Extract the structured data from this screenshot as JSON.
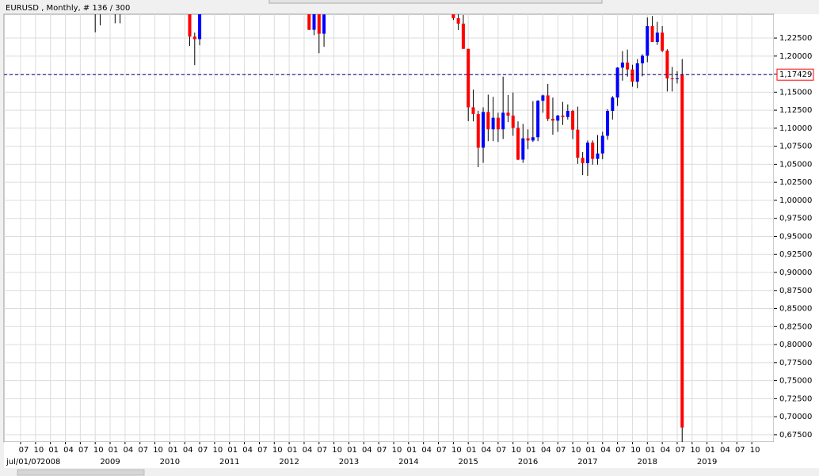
{
  "chart_data": {
    "type": "candlestick",
    "title": "EURUSD , Monthly, # 136 / 300",
    "colors": {
      "up": "#0000ff",
      "down": "#ff0000",
      "wick": "#000000"
    },
    "grid": true,
    "x": [
      "2008-10",
      "2008-11",
      "2008-12",
      "2009-01",
      "2009-02",
      "2009-03",
      "2010-05",
      "2010-06",
      "2010-07",
      "2012-05",
      "2012-06",
      "2012-07",
      "2012-08",
      "2014-10",
      "2014-11",
      "2014-12",
      "2015-01",
      "2015-02",
      "2015-03",
      "2015-04",
      "2015-05",
      "2015-06",
      "2015-07",
      "2015-08",
      "2015-09",
      "2015-10",
      "2015-11",
      "2015-12",
      "2016-01",
      "2016-02",
      "2016-03",
      "2016-04",
      "2016-05",
      "2016-06",
      "2016-07",
      "2016-08",
      "2016-09",
      "2016-10",
      "2016-11",
      "2016-12",
      "2017-01",
      "2017-02",
      "2017-03",
      "2017-04",
      "2017-05",
      "2017-06",
      "2017-07",
      "2017-08",
      "2017-09",
      "2017-10",
      "2017-11",
      "2017-12",
      "2018-01",
      "2018-02",
      "2018-03",
      "2018-04",
      "2018-05",
      "2018-06",
      "2018-07",
      "2018-08"
    ],
    "open": [
      1.409,
      1.273,
      1.2695,
      1.397,
      1.28,
      1.267,
      1.295,
      1.227,
      1.2235,
      1.324,
      1.2365,
      1.2665,
      1.231,
      1.263,
      1.2525,
      1.245,
      1.21,
      1.129,
      1.1197,
      1.073,
      1.1225,
      1.0985,
      1.1145,
      1.0985,
      1.1215,
      1.1175,
      1.1005,
      1.0565,
      1.086,
      1.083,
      1.0875,
      1.138,
      1.1455,
      1.113,
      1.1105,
      1.1175,
      1.1155,
      1.124,
      1.098,
      1.059,
      1.0515,
      1.08,
      1.0575,
      1.065,
      1.0895,
      1.124,
      1.1425,
      1.184,
      1.191,
      1.1815,
      1.1645,
      1.19,
      1.2005,
      1.2415,
      1.2195,
      1.2325,
      1.2075,
      1.169,
      1.1685,
      1.1742
    ],
    "high": [
      1.41,
      1.33,
      1.472,
      1.4,
      1.306,
      1.374,
      1.322,
      1.2325,
      1.311,
      1.3285,
      1.2745,
      1.2745,
      1.2625,
      1.289,
      1.26,
      1.257,
      1.21,
      1.1535,
      1.124,
      1.129,
      1.1465,
      1.1435,
      1.1215,
      1.1715,
      1.146,
      1.1495,
      1.1095,
      1.106,
      1.0985,
      1.1375,
      1.139,
      1.1465,
      1.1615,
      1.1425,
      1.1185,
      1.1365,
      1.133,
      1.1255,
      1.13,
      1.067,
      1.083,
      1.083,
      1.0905,
      1.095,
      1.1265,
      1.1445,
      1.1845,
      1.207,
      1.209,
      1.188,
      1.196,
      1.2025,
      1.2535,
      1.2555,
      1.2475,
      1.2415,
      1.2095,
      1.185,
      1.179,
      1.196
    ],
    "low": [
      1.233,
      1.2425,
      1.264,
      1.2745,
      1.2455,
      1.2455,
      1.214,
      1.1875,
      1.215,
      1.236,
      1.229,
      1.204,
      1.213,
      1.25,
      1.236,
      1.21,
      1.1098,
      1.1095,
      1.046,
      1.052,
      1.082,
      1.082,
      1.081,
      1.085,
      1.1085,
      1.0895,
      1.056,
      1.052,
      1.071,
      1.081,
      1.082,
      1.1215,
      1.11,
      1.091,
      1.095,
      1.1045,
      1.112,
      1.085,
      1.0505,
      1.035,
      1.034,
      1.0495,
      1.0495,
      1.057,
      1.084,
      1.112,
      1.131,
      1.166,
      1.1715,
      1.1575,
      1.1555,
      1.172,
      1.1915,
      1.2205,
      1.2155,
      1.2055,
      1.151,
      1.151,
      1.162,
      0.66
    ],
    "close": [
      1.273,
      1.2695,
      1.397,
      1.28,
      1.267,
      1.325,
      1.227,
      1.2235,
      1.305,
      1.2365,
      1.2665,
      1.231,
      1.2575,
      1.2525,
      1.245,
      1.21,
      1.129,
      1.1197,
      1.073,
      1.1225,
      1.0985,
      1.1145,
      1.0985,
      1.1215,
      1.1175,
      1.1005,
      1.0565,
      1.086,
      1.083,
      1.0875,
      1.138,
      1.1455,
      1.113,
      1.1105,
      1.1175,
      1.1155,
      1.124,
      1.098,
      1.059,
      1.0515,
      1.08,
      1.0575,
      1.065,
      1.0895,
      1.124,
      1.1425,
      1.184,
      1.191,
      1.1815,
      1.1645,
      1.19,
      1.2005,
      1.2415,
      1.2195,
      1.2325,
      1.2075,
      1.169,
      1.1685,
      1.169,
      0.685
    ],
    "ylim": [
      0.665,
      1.258
    ],
    "yticks": [
      {
        "value": 0.675,
        "label": "0,67500"
      },
      {
        "value": 0.7,
        "label": "0,70000"
      },
      {
        "value": 0.725,
        "label": "0,72500"
      },
      {
        "value": 0.75,
        "label": "0,75000"
      },
      {
        "value": 0.775,
        "label": "0,77500"
      },
      {
        "value": 0.8,
        "label": "0,80000"
      },
      {
        "value": 0.825,
        "label": "0,82500"
      },
      {
        "value": 0.85,
        "label": "0,85000"
      },
      {
        "value": 0.875,
        "label": "0,87500"
      },
      {
        "value": 0.9,
        "label": "0,90000"
      },
      {
        "value": 0.925,
        "label": "0,92500"
      },
      {
        "value": 0.95,
        "label": "0,95000"
      },
      {
        "value": 0.975,
        "label": "0,97500"
      },
      {
        "value": 1.0,
        "label": "1,00000"
      },
      {
        "value": 1.025,
        "label": "1,02500"
      },
      {
        "value": 1.05,
        "label": "1,05000"
      },
      {
        "value": 1.075,
        "label": "1,07500"
      },
      {
        "value": 1.1,
        "label": "1,10000"
      },
      {
        "value": 1.125,
        "label": "1,12500"
      },
      {
        "value": 1.15,
        "label": "1,15000"
      },
      {
        "value": 1.175,
        "label": "1,17500"
      },
      {
        "value": 1.2,
        "label": "1,20000"
      },
      {
        "value": 1.225,
        "label": "1,22500"
      }
    ],
    "xtick_labels": [
      "07",
      "10",
      "01",
      "04",
      "07",
      "10",
      "01",
      "04",
      "07",
      "10",
      "01",
      "04",
      "07",
      "10",
      "01",
      "04",
      "07",
      "10",
      "01",
      "04",
      "07",
      "10",
      "01",
      "04",
      "07",
      "10",
      "01",
      "04",
      "07",
      "10",
      "01",
      "04",
      "07",
      "10",
      "01",
      "04",
      "07",
      "10",
      "01",
      "04",
      "07",
      "10",
      "01",
      "04",
      "07",
      "10",
      "01",
      "04",
      "07",
      "10"
    ],
    "year_labels": [
      "jul/01/07",
      "2008",
      "2009",
      "2010",
      "2011",
      "2012",
      "2013",
      "2014",
      "2015",
      "2016",
      "2017",
      "2018",
      "2019"
    ],
    "price_line": {
      "value": 1.17429,
      "label": "1,17429",
      "color": "#00008b"
    }
  }
}
